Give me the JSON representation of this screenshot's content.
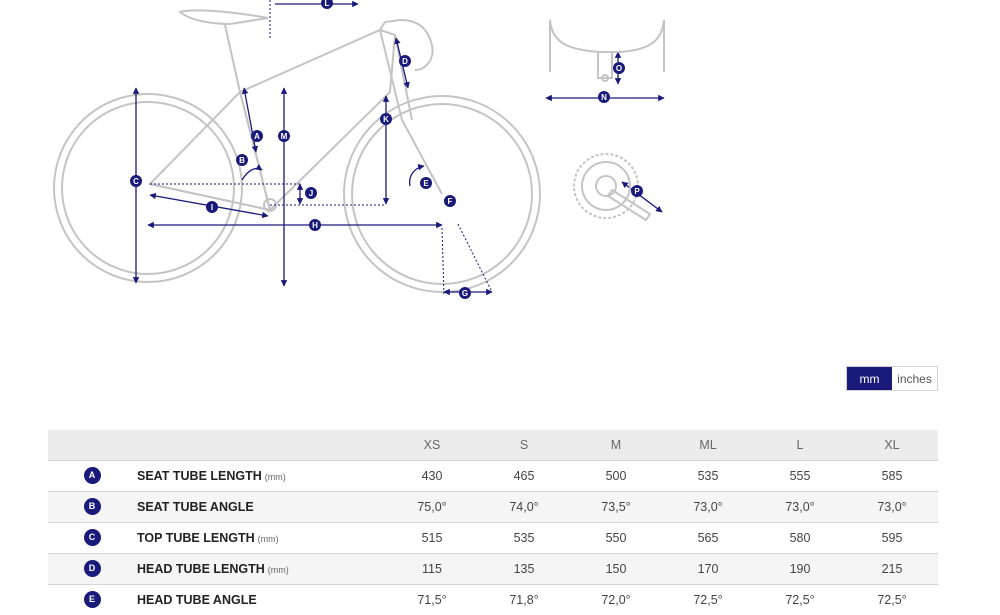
{
  "diagram": {
    "labels": [
      "A",
      "B",
      "C",
      "D",
      "E",
      "F",
      "G",
      "H",
      "I",
      "J",
      "K",
      "L",
      "M",
      "N",
      "O",
      "P"
    ]
  },
  "units": {
    "active": "mm",
    "inactive": "inches"
  },
  "table": {
    "sizes": [
      "XS",
      "S",
      "M",
      "ML",
      "L",
      "XL"
    ],
    "rows": [
      {
        "letter": "A",
        "name": "SEAT TUBE LENGTH",
        "unit": "(mm)",
        "values": [
          "430",
          "465",
          "500",
          "535",
          "555",
          "585"
        ]
      },
      {
        "letter": "B",
        "name": "SEAT TUBE ANGLE",
        "unit": "",
        "values": [
          "75,0°",
          "74,0°",
          "73,5°",
          "73,0°",
          "73,0°",
          "73,0°"
        ]
      },
      {
        "letter": "C",
        "name": "TOP TUBE LENGTH",
        "unit": "(mm)",
        "values": [
          "515",
          "535",
          "550",
          "565",
          "580",
          "595"
        ]
      },
      {
        "letter": "D",
        "name": "HEAD TUBE LENGTH",
        "unit": "(mm)",
        "values": [
          "115",
          "135",
          "150",
          "170",
          "190",
          "215"
        ]
      },
      {
        "letter": "E",
        "name": "HEAD TUBE ANGLE",
        "unit": "",
        "values": [
          "71,5°",
          "71,8°",
          "72,0°",
          "72,5°",
          "72,5°",
          "72,5°"
        ]
      }
    ]
  },
  "colors": {
    "accent": "#1a1a7a",
    "frame": "#bdbdbd"
  }
}
